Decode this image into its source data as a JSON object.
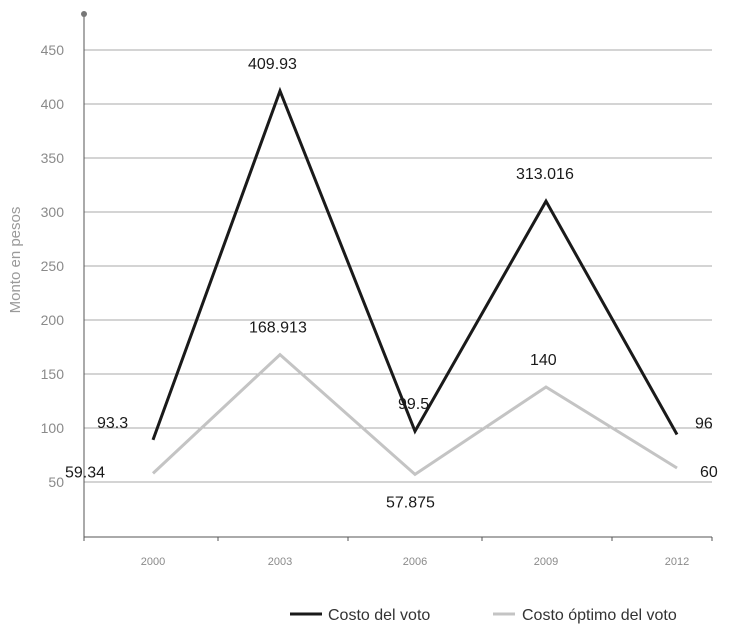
{
  "chart_data": {
    "type": "line",
    "title": "",
    "xlabel": "",
    "ylabel": "Monto en pesos",
    "categories": [
      "2000",
      "2003",
      "2006",
      "2009",
      "2012"
    ],
    "y_ticks": [
      "50",
      "100",
      "150",
      "200",
      "250",
      "300",
      "350",
      "400",
      "450"
    ],
    "ylim": [
      0,
      480
    ],
    "grid": "horizontal",
    "legend_position": "bottom-right",
    "series": [
      {
        "name": "Costo del voto",
        "color": "#1a1a1a",
        "values": [
          89,
          412,
          97,
          310,
          94
        ],
        "labels": [
          "93.3",
          "409.93",
          "99.5",
          "313.016",
          "96"
        ]
      },
      {
        "name": "Costo óptimo del voto",
        "color": "#c4c4c4",
        "values": [
          58,
          168,
          57,
          138,
          63
        ],
        "labels": [
          "59.34",
          "168.913",
          "57.875",
          "140",
          "60"
        ]
      }
    ]
  }
}
